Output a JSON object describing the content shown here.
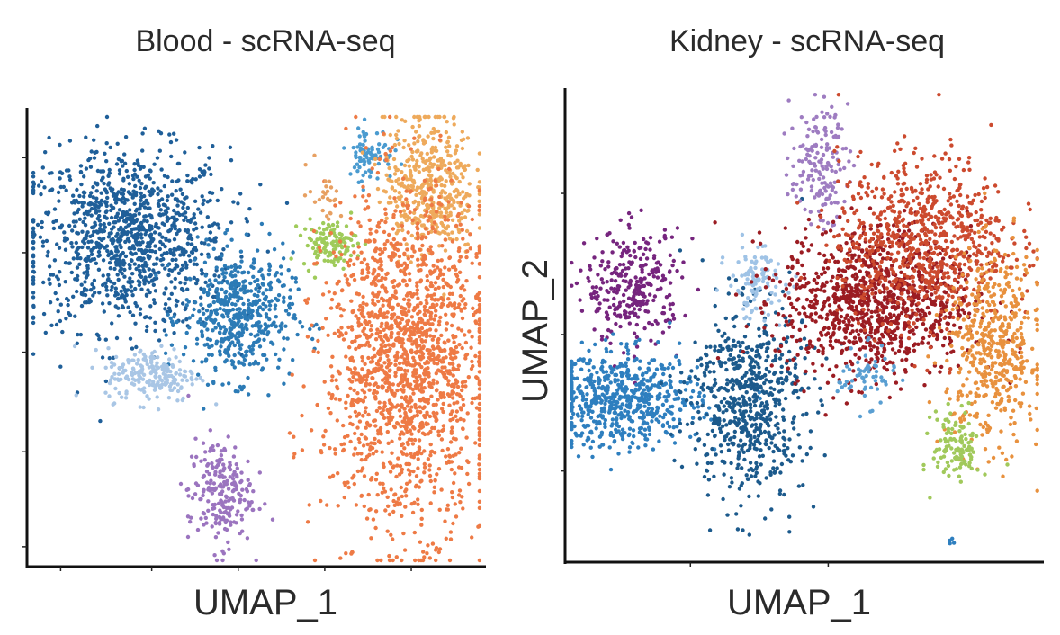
{
  "chart_data": [
    {
      "type": "scatter",
      "title": "Blood - scRNA-seq",
      "xlabel": "UMAP_1",
      "ylabel": "",
      "xlim": [
        0,
        100
      ],
      "ylim": [
        0,
        100
      ],
      "x_ticks": [
        7,
        27,
        46,
        65,
        84
      ],
      "y_ticks": [
        4,
        25,
        47,
        69,
        90
      ],
      "clusters": [
        {
          "color": "#1f5f99",
          "center": [
            22,
            72
          ],
          "spread": [
            11,
            10
          ],
          "count": 1100
        },
        {
          "color": "#2c7bb6",
          "center": [
            46,
            55
          ],
          "spread": [
            6,
            7
          ],
          "count": 520
        },
        {
          "color": "#a9c6e5",
          "center": [
            27,
            42
          ],
          "spread": [
            5,
            3
          ],
          "count": 200
        },
        {
          "color": "#4a9bd0",
          "center": [
            75,
            91
          ],
          "spread": [
            2.5,
            3
          ],
          "count": 80
        },
        {
          "color": "#9fcb5a",
          "center": [
            66,
            71
          ],
          "spread": [
            3,
            2.5
          ],
          "count": 120
        },
        {
          "color": "#9b74bf",
          "center": [
            42,
            16
          ],
          "spread": [
            3.5,
            6
          ],
          "count": 220
        },
        {
          "color": "#eeaa5c",
          "center": [
            88,
            84
          ],
          "spread": [
            5,
            8
          ],
          "count": 450
        },
        {
          "color": "#ee7a45",
          "center": [
            83,
            45
          ],
          "spread": [
            9,
            18
          ],
          "count": 1700
        },
        {
          "color": "#e7a062",
          "center": [
            65,
            82
          ],
          "spread": [
            2,
            3
          ],
          "count": 25
        }
      ]
    },
    {
      "type": "scatter",
      "title": "Kidney - scRNA-seq",
      "xlabel": "UMAP_1",
      "ylabel": "UMAP_2",
      "xlim": [
        0,
        100
      ],
      "ylim": [
        0,
        100
      ],
      "x_ticks": [
        26,
        55
      ],
      "y_ticks": [
        19,
        48,
        78
      ],
      "clusters": [
        {
          "color": "#76257e",
          "center": [
            14,
            58
          ],
          "spread": [
            5,
            6
          ],
          "count": 300
        },
        {
          "color": "#2e7fbf",
          "center": [
            12,
            34
          ],
          "spread": [
            8,
            5
          ],
          "count": 600
        },
        {
          "color": "#1c5a8c",
          "center": [
            38,
            34
          ],
          "spread": [
            6,
            10
          ],
          "count": 650
        },
        {
          "color": "#9fc3e6",
          "center": [
            40,
            59
          ],
          "spread": [
            3,
            4
          ],
          "count": 110
        },
        {
          "color": "#9e7cc1",
          "center": [
            53,
            84
          ],
          "spread": [
            3,
            6
          ],
          "count": 160
        },
        {
          "color": "#9b1c22",
          "center": [
            65,
            55
          ],
          "spread": [
            10,
            8
          ],
          "count": 1000
        },
        {
          "color": "#cc4a2e",
          "center": [
            75,
            68
          ],
          "spread": [
            9,
            9
          ],
          "count": 750
        },
        {
          "color": "#e8913e",
          "center": [
            90,
            45
          ],
          "spread": [
            5,
            10
          ],
          "count": 500
        },
        {
          "color": "#a1c95b",
          "center": [
            82,
            24
          ],
          "spread": [
            2.5,
            4
          ],
          "count": 120
        },
        {
          "color": "#5a9fd2",
          "center": [
            63,
            39
          ],
          "spread": [
            3,
            3
          ],
          "count": 60
        },
        {
          "color": "#2e7fbf",
          "center": [
            81,
            4
          ],
          "spread": [
            0.4,
            0.4
          ],
          "count": 4
        }
      ]
    }
  ]
}
